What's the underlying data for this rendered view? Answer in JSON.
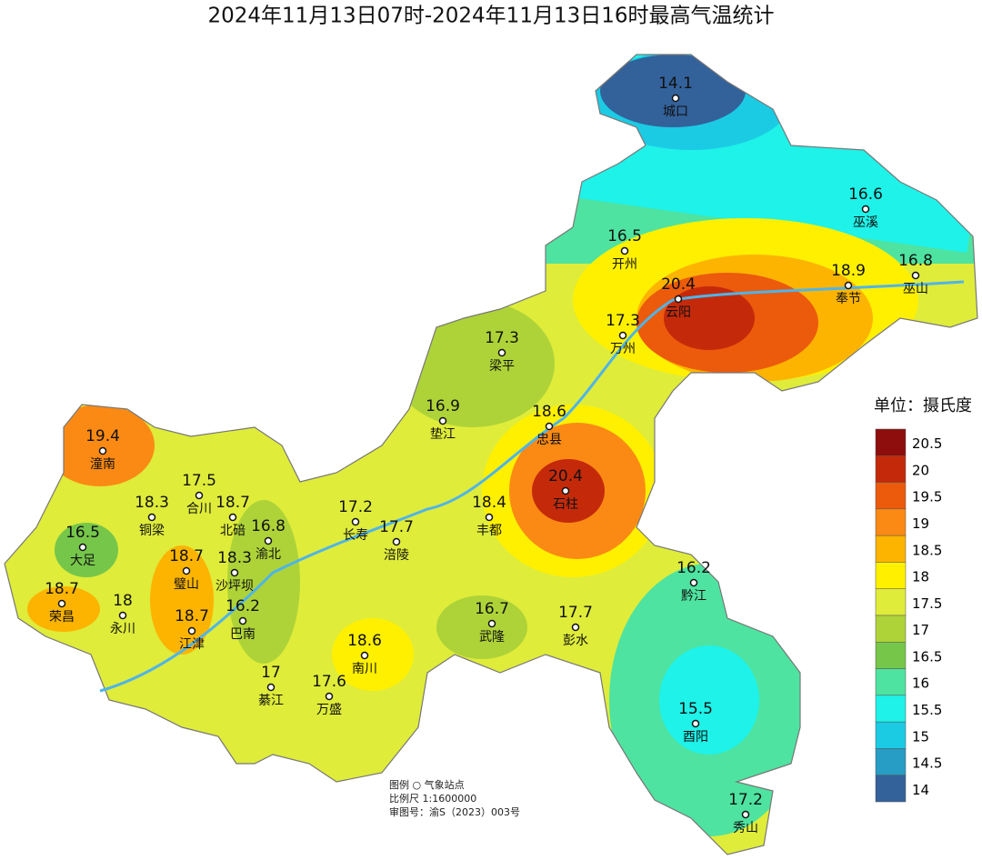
{
  "title": "2024年11月13日07时-2024年11月13日16时最高气温统计",
  "legend": {
    "unit": "单位：摄氏度",
    "levels": [
      {
        "value": 20.5,
        "color": "#8e0d0d"
      },
      {
        "value": 20,
        "color": "#c42a0a"
      },
      {
        "value": 19.5,
        "color": "#ec5a0c"
      },
      {
        "value": 19,
        "color": "#fb8a14"
      },
      {
        "value": 18.5,
        "color": "#fdb400"
      },
      {
        "value": 18,
        "color": "#fff000"
      },
      {
        "value": 17.5,
        "color": "#dfec3a"
      },
      {
        "value": 17,
        "color": "#aed338"
      },
      {
        "value": 16.5,
        "color": "#76c64a"
      },
      {
        "value": 16,
        "color": "#4ee3a0"
      },
      {
        "value": 15.5,
        "color": "#1ff2e8"
      },
      {
        "value": 15,
        "color": "#1bcbe4"
      },
      {
        "value": 14.5,
        "color": "#279cc4"
      },
      {
        "value": 14,
        "color": "#33619a"
      }
    ]
  },
  "stations": [
    {
      "name": "城口",
      "temp": 14.1
    },
    {
      "name": "巫溪",
      "temp": 16.6
    },
    {
      "name": "开州",
      "temp": 16.5
    },
    {
      "name": "巫山",
      "temp": 16.8
    },
    {
      "name": "奉节",
      "temp": 18.9
    },
    {
      "name": "云阳",
      "temp": 20.4
    },
    {
      "name": "万州",
      "temp": 17.3
    },
    {
      "name": "梁平",
      "temp": 17.3
    },
    {
      "name": "垫江",
      "temp": 16.9
    },
    {
      "name": "忠县",
      "temp": 18.6
    },
    {
      "name": "潼南",
      "temp": 19.4
    },
    {
      "name": "石柱",
      "temp": 20.4
    },
    {
      "name": "合川",
      "temp": 17.5
    },
    {
      "name": "北碚",
      "temp": 18.7
    },
    {
      "name": "铜梁",
      "temp": 18.3
    },
    {
      "name": "长寿",
      "temp": 17.2
    },
    {
      "name": "丰都",
      "temp": 18.4
    },
    {
      "name": "渝北",
      "temp": 16.8
    },
    {
      "name": "涪陵",
      "temp": 17.7
    },
    {
      "name": "大足",
      "temp": 16.5
    },
    {
      "name": "璧山",
      "temp": 18.7
    },
    {
      "name": "沙坪坝",
      "temp": 18.3
    },
    {
      "name": "黔江",
      "temp": 16.2
    },
    {
      "name": "荣昌",
      "temp": 18.7
    },
    {
      "name": "永川",
      "temp": 18
    },
    {
      "name": "巴南",
      "temp": 16.2
    },
    {
      "name": "武隆",
      "temp": 16.7
    },
    {
      "name": "彭水",
      "temp": 17.7
    },
    {
      "name": "江津",
      "temp": 18.7
    },
    {
      "name": "南川",
      "temp": 18.6
    },
    {
      "name": "綦江",
      "temp": 17
    },
    {
      "name": "万盛",
      "temp": 17.6
    },
    {
      "name": "酉阳",
      "temp": 15.5
    },
    {
      "name": "秀山",
      "temp": 17.2
    }
  ],
  "notes": [
    "图例  ○  气象站点",
    "比例尺    1:1600000",
    "审图号：渝S（2023）003号"
  ]
}
